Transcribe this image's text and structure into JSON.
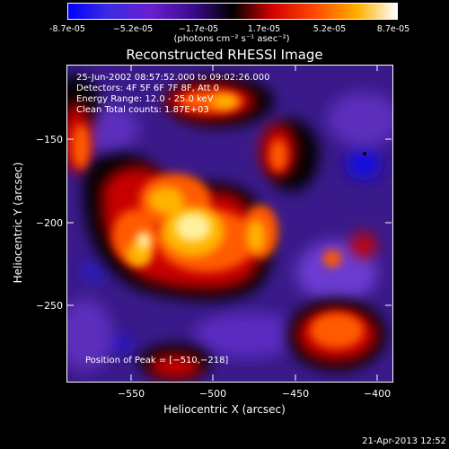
{
  "colorbar": {
    "tick_labels": [
      "-8.7e-05",
      "−5.2e-05",
      "−1.7e-05",
      "1.7e-05",
      "5.2e-05",
      "8.7e-05"
    ],
    "units_label": "(photons cm⁻² s⁻¹ asec⁻²)"
  },
  "title": "Reconstructed RHESSI Image",
  "annotations": {
    "time_range": "25-Jun-2002 08:57:52.000 to 09:02:26.000",
    "detectors": "Detectors: 4F 5F 6F 7F 8F, Att 0",
    "energy": "Energy Range: 12.0 - 25.0 keV",
    "clean": "Clean    Total counts: 1.87E+03",
    "peak": "Position of Peak = [−510,−218]"
  },
  "axes": {
    "xlabel": "Heliocentric X (arcsec)",
    "ylabel": "Heliocentric Y (arcsec)",
    "xticks": [
      "−550",
      "−500",
      "−450",
      "−400"
    ],
    "yticks": [
      "−150",
      "−200",
      "−250"
    ]
  },
  "footer_date": "21-Apr-2013 12:52",
  "colors": {
    "background": "#000000",
    "text": "#ffffff"
  }
}
